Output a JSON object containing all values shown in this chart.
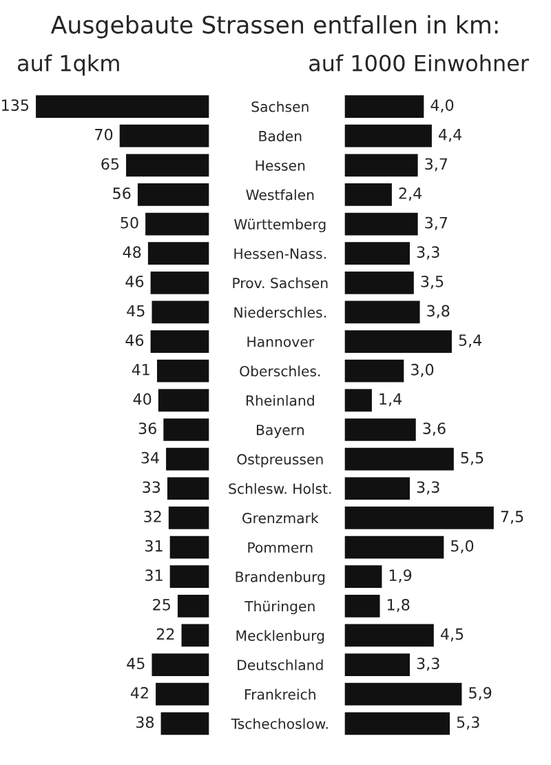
{
  "chart_data": [
    {
      "type": "bar",
      "orientation": "horizontal",
      "title": "Ausgebaute Strassen entfallen in km:",
      "subtitle": "auf 1qkm",
      "categories": [
        "Sachsen",
        "Baden",
        "Hessen",
        "Westfalen",
        "Württemberg",
        "Hessen-Nass.",
        "Prov. Sachsen",
        "Niederschles.",
        "Hannover",
        "Oberschles.",
        "Rheinland",
        "Bayern",
        "Ostpreussen",
        "Schlesw. Holst.",
        "Grenzmark",
        "Pommern",
        "Brandenburg",
        "Thüringen",
        "Mecklenburg",
        "Deutschland",
        "Frankreich",
        "Tschechoslow."
      ],
      "values": [
        135,
        70,
        65,
        56,
        50,
        48,
        46,
        45,
        46,
        41,
        40,
        36,
        34,
        33,
        32,
        31,
        31,
        25,
        22,
        45,
        42,
        38
      ],
      "color": "#111111",
      "data_labels": true,
      "tick_labels": "y"
    },
    {
      "type": "bar",
      "orientation": "horizontal",
      "title": "auf 1000 Einwohner",
      "values": [
        4.0,
        4.4,
        3.7,
        2.4,
        3.7,
        3.3,
        3.5,
        3.8,
        5.4,
        3.0,
        1.4,
        3.6,
        5.5,
        3.3,
        7.5,
        5.0,
        1.9,
        1.8,
        4.5,
        3.3,
        5.9,
        5.3
      ],
      "value_labels": [
        "4,0",
        "4,4",
        "3,7",
        "2,4",
        "3,7",
        "3,3",
        "3,5",
        "3,8",
        "5,4",
        "3,0",
        "1,4",
        "3,6",
        "5,5",
        "3,3",
        "7,5",
        "5,0",
        "1,9",
        "1,8",
        "4,5",
        "3,3",
        "5,9",
        "5,3"
      ],
      "color": "#111111",
      "tick_labels": false
    }
  ]
}
